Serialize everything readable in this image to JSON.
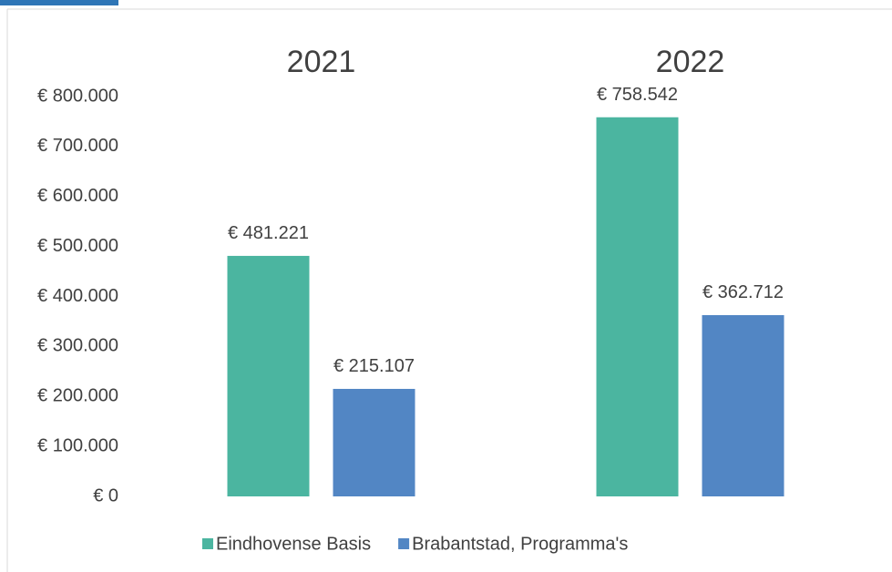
{
  "chart_data": {
    "type": "bar",
    "categories": [
      "2021",
      "2022"
    ],
    "series": [
      {
        "name": "Eindhovense Basis",
        "color": "#4bb5a0",
        "values": [
          481221,
          758542
        ],
        "value_labels": [
          "€ 481.221",
          "€ 758.542"
        ]
      },
      {
        "name": "Brabantstad, Programma's",
        "color": "#5286c4",
        "values": [
          215107,
          362712
        ],
        "value_labels": [
          "€ 215.107",
          "€ 362.712"
        ]
      }
    ],
    "ylim": [
      0,
      800000
    ],
    "yticks": [
      {
        "value": 0,
        "label": "€ 0"
      },
      {
        "value": 100000,
        "label": "€ 100.000"
      },
      {
        "value": 200000,
        "label": "€ 200.000"
      },
      {
        "value": 300000,
        "label": "€ 300.000"
      },
      {
        "value": 400000,
        "label": "€ 400.000"
      },
      {
        "value": 500000,
        "label": "€ 500.000"
      },
      {
        "value": 600000,
        "label": "€ 600.000"
      },
      {
        "value": 700000,
        "label": "€ 700.000"
      },
      {
        "value": 800000,
        "label": "€ 800.000"
      }
    ],
    "grid": false,
    "legend": "bottom"
  }
}
